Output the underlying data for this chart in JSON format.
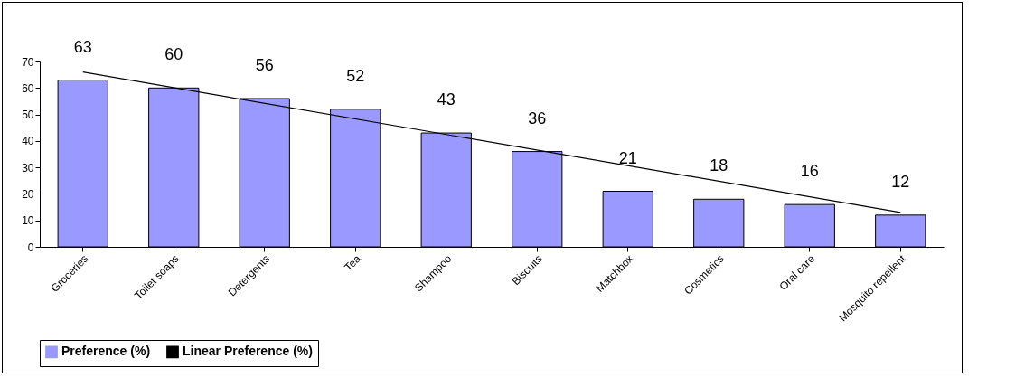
{
  "chart_data": {
    "type": "bar",
    "categories": [
      "Groceries",
      "Toilet soaps",
      "Detergents",
      "Tea",
      "Shampoo",
      "Biscuits",
      "Matchbox",
      "Cosmetics",
      "Oral care",
      "Mosquito repellent"
    ],
    "series": [
      {
        "name": "Preference (%)",
        "color": "#9999ff",
        "values": [
          63,
          60,
          56,
          52,
          43,
          36,
          21,
          18,
          16,
          12
        ],
        "value_labels": [
          "63",
          "60",
          "56",
          "52",
          "43",
          "36",
          "21",
          "18",
          "16",
          "12"
        ]
      },
      {
        "name": "Linear Preference (%)",
        "type": "line",
        "color": "#000000",
        "x": [
          "Groceries",
          "Mosquito repellent"
        ],
        "values": [
          66,
          13
        ]
      }
    ],
    "ylim": [
      0,
      70
    ],
    "yticks": [
      0,
      10,
      20,
      30,
      40,
      50,
      60,
      70
    ],
    "grid": false,
    "legend": "bottom"
  }
}
